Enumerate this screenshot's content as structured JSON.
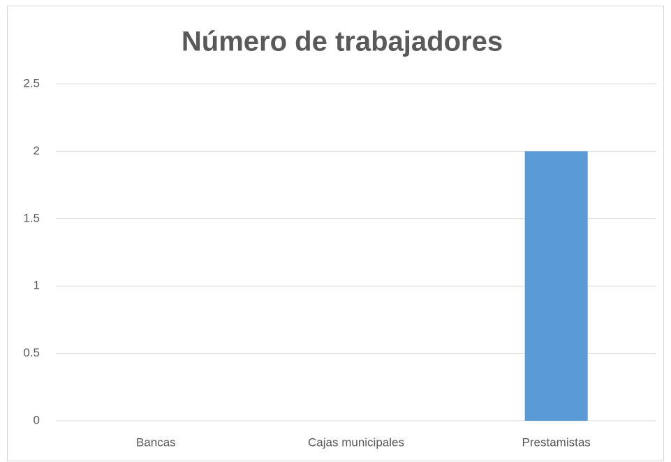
{
  "chart_data": {
    "type": "bar",
    "title": "Número de trabajadores",
    "categories": [
      "Bancas",
      "Cajas municipales",
      "Prestamistas"
    ],
    "values": [
      0,
      0,
      2
    ],
    "color": "#5b9bd5",
    "ylim": [
      0,
      2.5
    ],
    "yticks": [
      0,
      0.5,
      1,
      1.5,
      2,
      2.5
    ],
    "grid": true
  }
}
